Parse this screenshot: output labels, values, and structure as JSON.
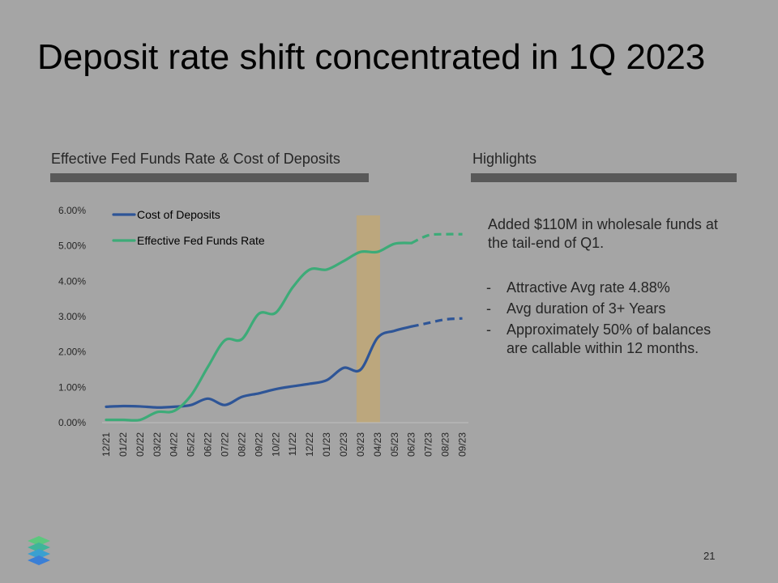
{
  "slide": {
    "title": "Deposit rate shift concentrated in 1Q 2023",
    "chart_section_title": "Effective Fed Funds Rate & Cost of Deposits",
    "highlights_title": "Highlights",
    "page_number": "21"
  },
  "highlights": {
    "intro": "Added $110M in wholesale funds at the tail-end of Q1.",
    "bullets": [
      "Attractive Avg rate 4.88%",
      "Avg duration of 3+ Years",
      "Approximately 50% of balances are callable within 12 months."
    ]
  },
  "colors": {
    "cost_of_deposits": "#2e5597",
    "fed_funds": "#3dab78",
    "highlight_band": "#bfa775",
    "background": "#a5a5a5",
    "section_bar": "#595959"
  },
  "chart_data": {
    "type": "line",
    "title": "",
    "xlabel": "",
    "ylabel": "",
    "ylim": [
      0,
      6
    ],
    "y_ticks": [
      "0.00%",
      "1.00%",
      "2.00%",
      "3.00%",
      "4.00%",
      "5.00%",
      "6.00%"
    ],
    "categories": [
      "12/21",
      "01/22",
      "02/22",
      "03/22",
      "04/22",
      "05/22",
      "06/22",
      "07/22",
      "08/22",
      "09/22",
      "10/22",
      "11/22",
      "12/22",
      "01/23",
      "02/23",
      "03/23",
      "04/23",
      "05/23",
      "06/23",
      "07/23",
      "08/23",
      "09/23"
    ],
    "highlight_period": "03/23",
    "legend_position": "top-left",
    "grid": false,
    "series": [
      {
        "name": "Cost of Deposits",
        "color_key": "cost_of_deposits",
        "values": [
          0.45,
          0.47,
          0.46,
          0.43,
          0.45,
          0.5,
          0.68,
          0.5,
          0.73,
          0.83,
          0.95,
          1.03,
          1.1,
          1.2,
          1.55,
          1.5,
          2.4,
          2.6,
          2.72,
          2.82,
          2.92,
          2.95
        ],
        "actual_through": "06/23",
        "style_after": "dashed"
      },
      {
        "name": "Effective Fed Funds Rate",
        "color_key": "fed_funds",
        "values": [
          0.08,
          0.08,
          0.08,
          0.3,
          0.33,
          0.77,
          1.58,
          2.33,
          2.36,
          3.08,
          3.11,
          3.83,
          4.33,
          4.33,
          4.57,
          4.83,
          4.83,
          5.06,
          5.08,
          5.3,
          5.33,
          5.33
        ],
        "actual_through": "06/23",
        "style_after": "dashed"
      }
    ]
  }
}
